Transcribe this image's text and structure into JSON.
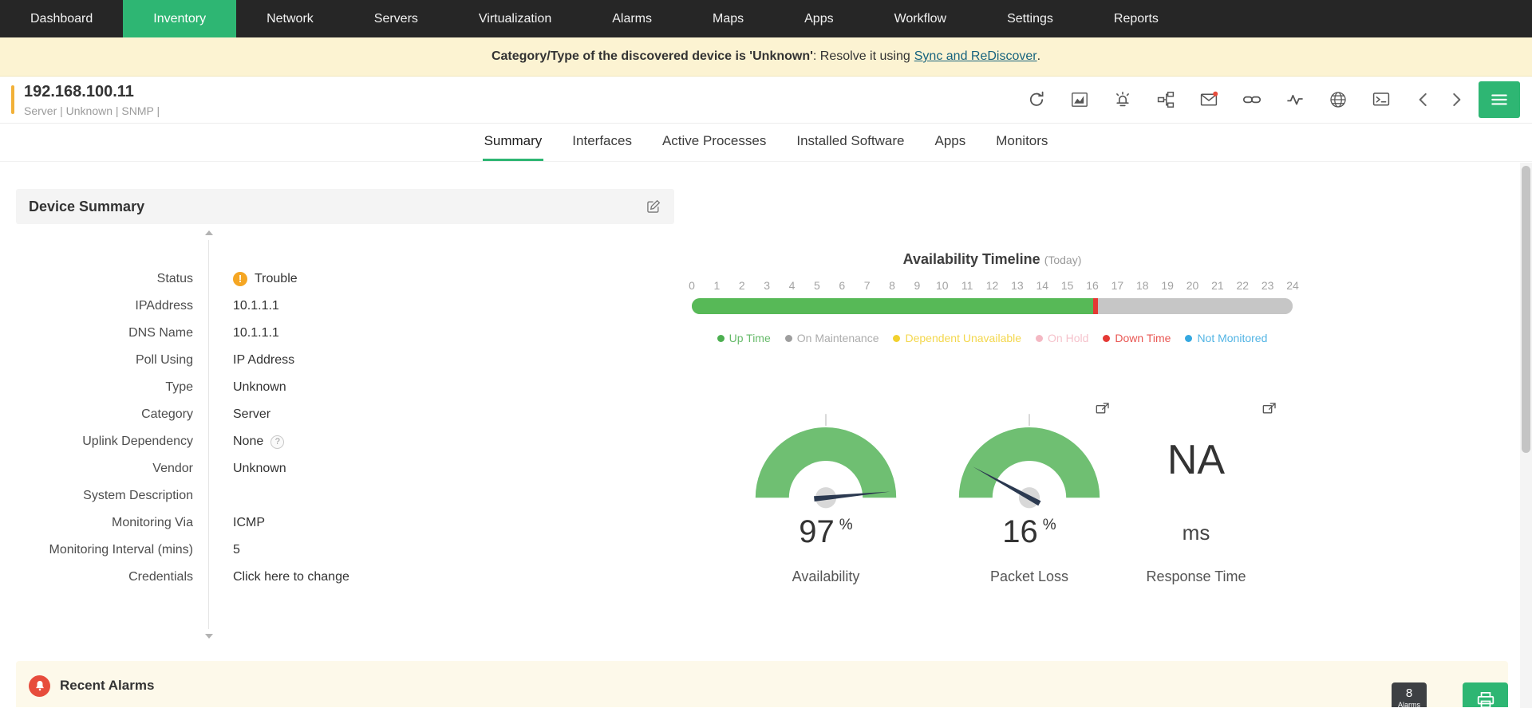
{
  "colors": {
    "brand_green": "#2eb673",
    "nav_bg": "#262626",
    "banner_bg": "#fcf3d2",
    "status_trouble": "#f5a623",
    "gauge_green": "#6fbf72",
    "needle": "#2b3950",
    "alarm_red": "#e74c3c",
    "timeline_up": "#57b957",
    "timeline_down": "#e53935",
    "timeline_not_monitored": "#c6c6c6"
  },
  "nav": {
    "items": [
      {
        "label": "Dashboard"
      },
      {
        "label": "Inventory",
        "active": true
      },
      {
        "label": "Network"
      },
      {
        "label": "Servers"
      },
      {
        "label": "Virtualization"
      },
      {
        "label": "Alarms"
      },
      {
        "label": "Maps"
      },
      {
        "label": "Apps"
      },
      {
        "label": "Workflow"
      },
      {
        "label": "Settings"
      },
      {
        "label": "Reports"
      }
    ]
  },
  "banner": {
    "bold": "Category/Type of the discovered device is 'Unknown'",
    "mid": ": Resolve it using",
    "link": "Sync and ReDiscover",
    "suffix": "."
  },
  "device": {
    "name": "192.168.100.11",
    "meta": "Server | Unknown  | SNMP  |",
    "toolbar_icons": [
      "refresh",
      "area-chart",
      "notification",
      "topology",
      "mail",
      "link",
      "line-chart",
      "globe",
      "terminal"
    ]
  },
  "tabs": {
    "active_index": 0,
    "items": [
      "Summary",
      "Interfaces",
      "Active Processes",
      "Installed Software",
      "Apps",
      "Monitors"
    ]
  },
  "summary": {
    "title": "Device Summary",
    "fields": [
      {
        "label": "Status",
        "value": "Trouble",
        "icon": "trouble"
      },
      {
        "label": "IPAddress",
        "value": "10.1.1.1"
      },
      {
        "label": "DNS Name",
        "value": "10.1.1.1"
      },
      {
        "label": "Poll Using",
        "value": "IP Address"
      },
      {
        "label": "Type",
        "value": "Unknown"
      },
      {
        "label": "Category",
        "value": "Server"
      },
      {
        "label": "Uplink Dependency",
        "value": "None",
        "help": "?"
      },
      {
        "label": "Vendor",
        "value": "Unknown"
      },
      {
        "label": "System Description",
        "value": ""
      },
      {
        "label": "Monitoring Via",
        "value": "ICMP"
      },
      {
        "label": "Monitoring Interval (mins)",
        "value": "5"
      },
      {
        "label": "Credentials",
        "value": "Click here to change",
        "link": true
      }
    ]
  },
  "timeline": {
    "title": "Availability Timeline",
    "subtitle": "(Today)",
    "hours": [
      "0",
      "1",
      "2",
      "3",
      "4",
      "5",
      "6",
      "7",
      "8",
      "9",
      "10",
      "11",
      "12",
      "13",
      "14",
      "15",
      "16",
      "17",
      "18",
      "19",
      "20",
      "21",
      "22",
      "23",
      "24"
    ],
    "segments": [
      {
        "status": "up",
        "pct": 66.8
      },
      {
        "status": "down",
        "pct": 0.8
      },
      {
        "status": "not_monitored",
        "pct": 32.4
      }
    ],
    "legend": [
      {
        "label": "Up Time",
        "color": "#4caf50"
      },
      {
        "label": "On Maintenance",
        "color": "#9e9e9e"
      },
      {
        "label": "Dependent Unavailable",
        "color": "#f2d12e"
      },
      {
        "label": "On Hold",
        "color": "#f4b8c3"
      },
      {
        "label": "Down Time",
        "color": "#e53935"
      },
      {
        "label": "Not Monitored",
        "color": "#35a8e0"
      }
    ]
  },
  "gauges": [
    {
      "name": "Availability",
      "value": "97",
      "unit": "%",
      "percent": 97
    },
    {
      "name": "Packet Loss",
      "value": "16",
      "unit": "%",
      "percent": 16,
      "popout": true
    },
    {
      "name": "Response Time",
      "value": "NA",
      "unit": "ms",
      "percent": null,
      "popout": true
    }
  ],
  "alarms": {
    "title": "Recent Alarms",
    "count": "8",
    "count_label": "Alarms"
  }
}
